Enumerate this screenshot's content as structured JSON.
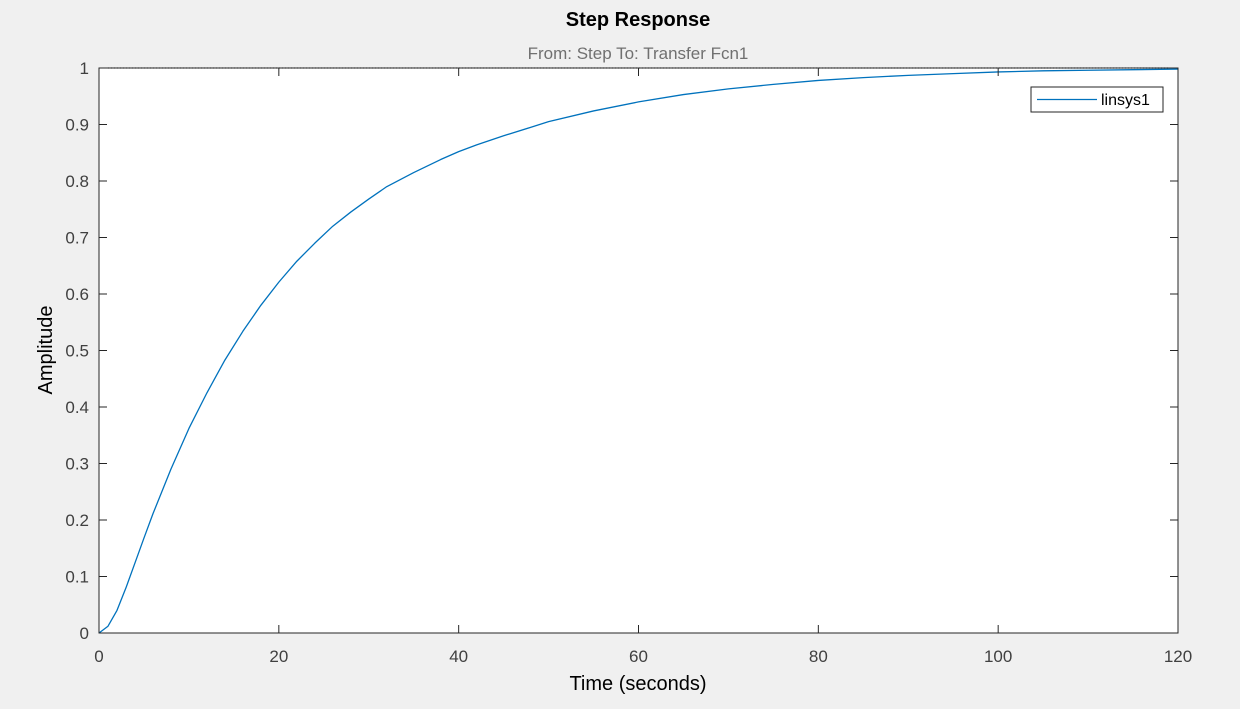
{
  "chart_data": {
    "type": "line",
    "title": "Step Response",
    "subtitle": "From: Step  To: Transfer Fcn1",
    "xlabel": "Time (seconds)",
    "ylabel": "Amplitude",
    "xlim": [
      0,
      120
    ],
    "ylim": [
      0,
      1
    ],
    "x_ticks": [
      0,
      20,
      40,
      60,
      80,
      100,
      120
    ],
    "y_ticks": [
      0,
      0.1,
      0.2,
      0.3,
      0.4,
      0.5,
      0.6,
      0.7,
      0.8,
      0.9,
      1
    ],
    "x_tick_labels": [
      "0",
      "20",
      "40",
      "60",
      "80",
      "100",
      "120"
    ],
    "y_tick_labels": [
      "0",
      "0.1",
      "0.2",
      "0.3",
      "0.4",
      "0.5",
      "0.6",
      "0.7",
      "0.8",
      "0.9",
      "1"
    ],
    "grid": false,
    "legend_position": "top-right",
    "reference_line": {
      "y": 1,
      "style": "dotted"
    },
    "series": [
      {
        "name": "linsys1",
        "color": "#0072bd",
        "x": [
          0,
          1,
          2,
          3,
          4,
          5,
          6,
          8,
          10,
          12,
          14,
          16,
          18,
          20,
          22,
          24,
          26,
          28,
          30,
          32,
          35,
          38,
          40,
          42,
          45,
          48,
          50,
          55,
          60,
          65,
          70,
          75,
          80,
          85,
          90,
          95,
          100,
          105,
          110,
          115,
          120
        ],
        "y": [
          0,
          0.012,
          0.04,
          0.08,
          0.124,
          0.168,
          0.211,
          0.29,
          0.362,
          0.425,
          0.483,
          0.534,
          0.58,
          0.621,
          0.658,
          0.69,
          0.72,
          0.745,
          0.768,
          0.79,
          0.815,
          0.838,
          0.852,
          0.864,
          0.88,
          0.895,
          0.905,
          0.924,
          0.94,
          0.953,
          0.963,
          0.971,
          0.978,
          0.983,
          0.987,
          0.99,
          0.993,
          0.995,
          0.996,
          0.997,
          0.998
        ]
      }
    ]
  },
  "colors": {
    "figure_background": "#f0f0f0",
    "axes_background": "#ffffff",
    "axes_border": "#262626",
    "reference_line": "#000000"
  }
}
